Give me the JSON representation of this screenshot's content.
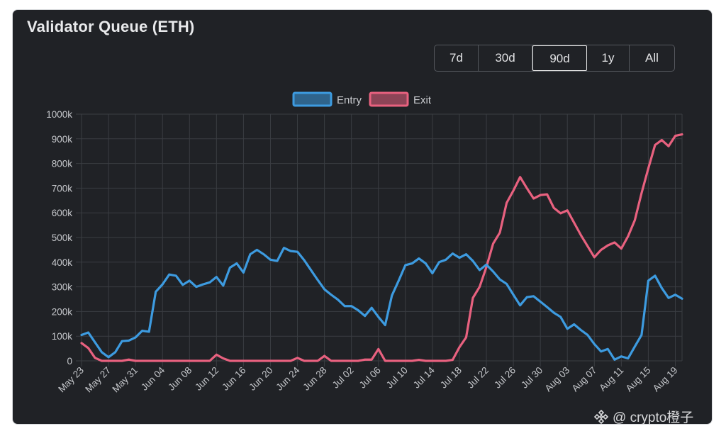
{
  "title": "Validator Queue (ETH)",
  "range_buttons": [
    {
      "label": "7d",
      "active": false
    },
    {
      "label": "30d",
      "active": false
    },
    {
      "label": "90d",
      "active": true
    },
    {
      "label": "1y",
      "active": false
    },
    {
      "label": "All",
      "active": false
    }
  ],
  "watermark": {
    "text": "@ crypto橙子",
    "icon": "diamond-logo-icon"
  },
  "colors": {
    "entry": "#3d9be0",
    "exit": "#e8617f",
    "grid": "#3a3d42",
    "tick": "#c6c8cc",
    "background": "#202226"
  },
  "chart_data": {
    "type": "line",
    "title": "Validator Queue (ETH)",
    "legend_position": "top",
    "grid": true,
    "ylim": [
      0,
      1000000
    ],
    "y_ticks": [
      "0",
      "100k",
      "200k",
      "300k",
      "400k",
      "500k",
      "600k",
      "700k",
      "800k",
      "900k",
      "1000k"
    ],
    "x_ticks": [
      "May 23",
      "May 27",
      "May 31",
      "Jun 04",
      "Jun 08",
      "Jun 12",
      "Jun 16",
      "Jun 20",
      "Jun 24",
      "Jun 28",
      "Jul 02",
      "Jul 06",
      "Jul 10",
      "Jul 14",
      "Jul 18",
      "Jul 22",
      "Jul 26",
      "Jul 30",
      "Aug 03",
      "Aug 07",
      "Aug 11",
      "Aug 15",
      "Aug 19"
    ],
    "x_start": "May 23",
    "x_end": "Aug 20",
    "series": [
      {
        "name": "Entry",
        "color": "#3d9be0",
        "values": [
          105000,
          115000,
          75000,
          35000,
          15000,
          35000,
          80000,
          82000,
          95000,
          122000,
          118000,
          280000,
          310000,
          350000,
          345000,
          308000,
          325000,
          300000,
          310000,
          318000,
          340000,
          305000,
          378000,
          395000,
          358000,
          432000,
          450000,
          432000,
          410000,
          405000,
          458000,
          445000,
          442000,
          408000,
          368000,
          328000,
          290000,
          268000,
          248000,
          222000,
          222000,
          205000,
          182000,
          215000,
          178000,
          145000,
          265000,
          325000,
          388000,
          395000,
          415000,
          395000,
          355000,
          400000,
          410000,
          435000,
          418000,
          432000,
          405000,
          368000,
          390000,
          362000,
          330000,
          312000,
          268000,
          225000,
          258000,
          262000,
          240000,
          218000,
          195000,
          178000,
          130000,
          148000,
          125000,
          105000,
          68000,
          38000,
          48000,
          5000,
          18000,
          10000,
          58000,
          105000,
          325000,
          345000,
          295000,
          255000,
          268000,
          252000
        ]
      },
      {
        "name": "Exit",
        "color": "#e8617f",
        "values": [
          72000,
          52000,
          12000,
          0,
          0,
          0,
          0,
          5000,
          0,
          0,
          0,
          0,
          0,
          0,
          0,
          0,
          0,
          0,
          0,
          0,
          25000,
          10000,
          0,
          0,
          0,
          0,
          0,
          0,
          0,
          0,
          0,
          0,
          12000,
          0,
          0,
          0,
          20000,
          0,
          0,
          0,
          0,
          0,
          5000,
          5000,
          48000,
          0,
          0,
          0,
          0,
          0,
          4000,
          0,
          0,
          0,
          0,
          4000,
          55000,
          95000,
          255000,
          300000,
          380000,
          475000,
          520000,
          640000,
          690000,
          745000,
          700000,
          658000,
          672000,
          675000,
          620000,
          598000,
          610000,
          560000,
          510000,
          465000,
          420000,
          450000,
          468000,
          480000,
          455000,
          505000,
          570000,
          680000,
          780000,
          875000,
          895000,
          870000,
          912000,
          918000
        ]
      }
    ]
  }
}
